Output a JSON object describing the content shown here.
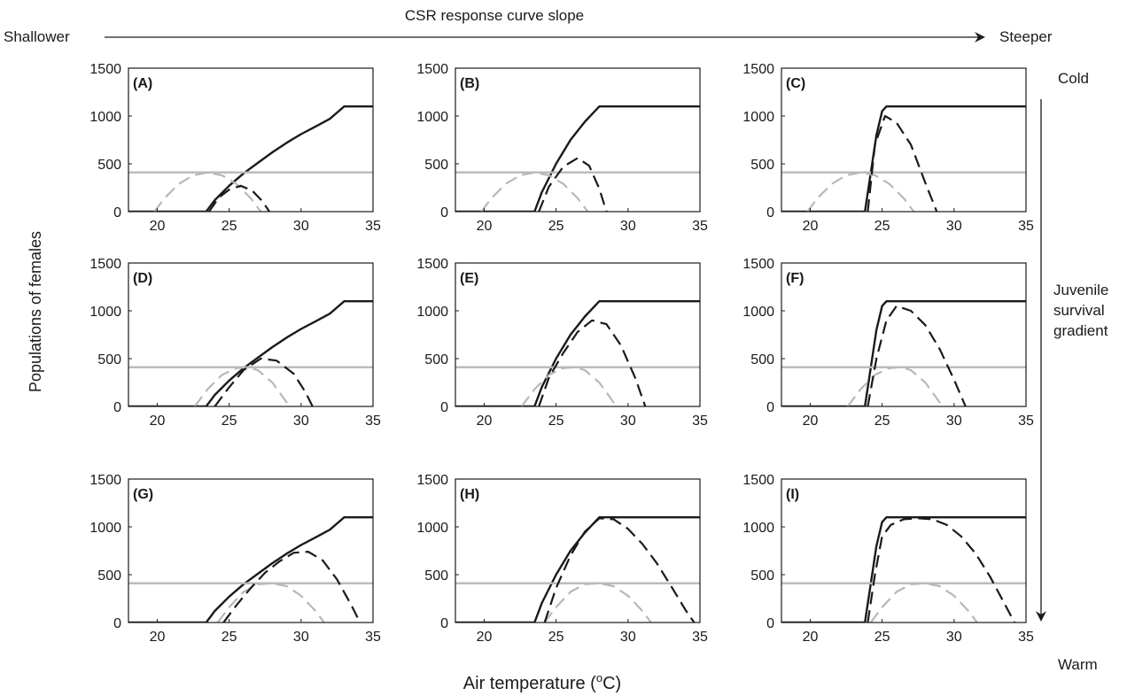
{
  "header": {
    "title": "CSR response curve slope",
    "left_label": "Shallower",
    "right_label": "Steeper"
  },
  "side": {
    "top_label": "Cold",
    "middle_label_lines": [
      "Juvenile",
      "survival",
      "gradient"
    ],
    "bottom_label": "Warm"
  },
  "axes": {
    "ylabel": "Populations of females",
    "xlabel_main": "Air  temperature (",
    "xlabel_sup": "o",
    "xlabel_end": "C)"
  },
  "colors": {
    "axis": "#1a1a1a",
    "csr_line": "#1a1a1a",
    "population_dashed_black": "#1a1a1a",
    "constant_gray": "#b8b8b8",
    "dashed_gray": "#b8b8b8"
  },
  "chart_data": [
    {
      "type": "line",
      "panel_label": "(A)",
      "xlim": [
        18,
        35
      ],
      "ylim": [
        0,
        1500
      ],
      "xticks": [
        20,
        25,
        30,
        35
      ],
      "yticks": [
        0,
        500,
        1000,
        1500
      ],
      "series": [
        {
          "style": "solid-black",
          "x": [
            18,
            23.4,
            24,
            25,
            26,
            27,
            28,
            29,
            30,
            31,
            32,
            33,
            35
          ],
          "y": [
            0,
            0,
            120,
            270,
            400,
            510,
            620,
            720,
            810,
            890,
            970,
            1100,
            1100
          ]
        },
        {
          "style": "solid-gray",
          "x": [
            18,
            35
          ],
          "y": [
            410,
            410
          ]
        },
        {
          "style": "dashed-gray",
          "x": [
            19.8,
            20.5,
            21.5,
            22.5,
            23.5,
            24.5,
            25.5,
            26.5,
            27.2
          ],
          "y": [
            0,
            140,
            290,
            380,
            410,
            380,
            290,
            140,
            0
          ]
        },
        {
          "style": "dashed-black",
          "x": [
            23.6,
            24.3,
            25,
            25.8,
            26.6,
            27.3,
            27.8
          ],
          "y": [
            0,
            150,
            230,
            270,
            220,
            110,
            0
          ]
        }
      ]
    },
    {
      "type": "line",
      "panel_label": "(B)",
      "xlim": [
        18,
        35
      ],
      "ylim": [
        0,
        1500
      ],
      "xticks": [
        20,
        25,
        30,
        35
      ],
      "yticks": [
        0,
        500,
        1000,
        1500
      ],
      "series": [
        {
          "style": "solid-black",
          "x": [
            18,
            23.5,
            24,
            25,
            26,
            27,
            28,
            35
          ],
          "y": [
            0,
            0,
            200,
            500,
            750,
            940,
            1100,
            1100
          ]
        },
        {
          "style": "solid-gray",
          "x": [
            18,
            35
          ],
          "y": [
            410,
            410
          ]
        },
        {
          "style": "dashed-gray",
          "x": [
            19.8,
            20.5,
            21.5,
            22.5,
            23.5,
            24.5,
            25.5,
            26.5,
            27.2
          ],
          "y": [
            0,
            140,
            290,
            380,
            410,
            380,
            290,
            140,
            0
          ]
        },
        {
          "style": "dashed-black",
          "x": [
            23.8,
            24.5,
            25.5,
            26.5,
            27.3,
            28.0,
            28.5
          ],
          "y": [
            0,
            260,
            470,
            560,
            480,
            240,
            0
          ]
        }
      ]
    },
    {
      "type": "line",
      "panel_label": "(C)",
      "xlim": [
        18,
        35
      ],
      "ylim": [
        0,
        1500
      ],
      "xticks": [
        20,
        25,
        30,
        35
      ],
      "yticks": [
        0,
        500,
        1000,
        1500
      ],
      "series": [
        {
          "style": "solid-black",
          "x": [
            18,
            23.8,
            24.2,
            24.6,
            25,
            25.3,
            35
          ],
          "y": [
            0,
            0,
            400,
            800,
            1050,
            1100,
            1100
          ]
        },
        {
          "style": "solid-gray",
          "x": [
            18,
            35
          ],
          "y": [
            410,
            410
          ]
        },
        {
          "style": "dashed-gray",
          "x": [
            19.8,
            20.5,
            21.5,
            22.5,
            23.5,
            24.5,
            25.5,
            26.5,
            27.2
          ],
          "y": [
            0,
            140,
            290,
            380,
            410,
            380,
            290,
            140,
            0
          ]
        },
        {
          "style": "dashed-black",
          "x": [
            24,
            24.5,
            25.2,
            26,
            27,
            28,
            28.8
          ],
          "y": [
            0,
            700,
            1000,
            930,
            700,
            300,
            0
          ]
        }
      ]
    },
    {
      "type": "line",
      "panel_label": "(D)",
      "xlim": [
        18,
        35
      ],
      "ylim": [
        0,
        1500
      ],
      "xticks": [
        20,
        25,
        30,
        35
      ],
      "yticks": [
        0,
        500,
        1000,
        1500
      ],
      "series": [
        {
          "style": "solid-black",
          "x": [
            18,
            23.4,
            24,
            25,
            26,
            27,
            28,
            29,
            30,
            31,
            32,
            33,
            35
          ],
          "y": [
            0,
            0,
            120,
            270,
            400,
            510,
            620,
            720,
            810,
            890,
            970,
            1100,
            1100
          ]
        },
        {
          "style": "solid-gray",
          "x": [
            18,
            35
          ],
          "y": [
            410,
            410
          ]
        },
        {
          "style": "dashed-gray",
          "x": [
            22.6,
            23.5,
            24.5,
            25.5,
            26.3,
            27,
            28,
            29.2
          ],
          "y": [
            0,
            180,
            330,
            400,
            410,
            380,
            250,
            0
          ]
        },
        {
          "style": "dashed-black",
          "x": [
            24,
            25,
            26,
            27.2,
            28.3,
            29.5,
            30.3,
            30.8
          ],
          "y": [
            0,
            200,
            380,
            500,
            480,
            340,
            150,
            0
          ]
        }
      ]
    },
    {
      "type": "line",
      "panel_label": "(E)",
      "xlim": [
        18,
        35
      ],
      "ylim": [
        0,
        1500
      ],
      "xticks": [
        20,
        25,
        30,
        35
      ],
      "yticks": [
        0,
        500,
        1000,
        1500
      ],
      "series": [
        {
          "style": "solid-black",
          "x": [
            18,
            23.5,
            24,
            25,
            26,
            27,
            28,
            35
          ],
          "y": [
            0,
            0,
            200,
            500,
            750,
            940,
            1100,
            1100
          ]
        },
        {
          "style": "solid-gray",
          "x": [
            18,
            35
          ],
          "y": [
            410,
            410
          ]
        },
        {
          "style": "dashed-gray",
          "x": [
            22.6,
            23.5,
            24.5,
            25.5,
            26.3,
            27,
            28,
            29.2
          ],
          "y": [
            0,
            180,
            330,
            400,
            410,
            380,
            250,
            0
          ]
        },
        {
          "style": "dashed-black",
          "x": [
            23.8,
            24.5,
            25.5,
            26.5,
            27.5,
            28.5,
            29.5,
            30.5,
            31.2
          ],
          "y": [
            0,
            300,
            560,
            780,
            900,
            860,
            640,
            300,
            0
          ]
        }
      ]
    },
    {
      "type": "line",
      "panel_label": "(F)",
      "xlim": [
        18,
        35
      ],
      "ylim": [
        0,
        1500
      ],
      "xticks": [
        20,
        25,
        30,
        35
      ],
      "yticks": [
        0,
        500,
        1000,
        1500
      ],
      "series": [
        {
          "style": "solid-black",
          "x": [
            18,
            23.8,
            24.2,
            24.6,
            25,
            25.3,
            35
          ],
          "y": [
            0,
            0,
            400,
            800,
            1050,
            1100,
            1100
          ]
        },
        {
          "style": "solid-gray",
          "x": [
            18,
            35
          ],
          "y": [
            410,
            410
          ]
        },
        {
          "style": "dashed-gray",
          "x": [
            22.6,
            23.5,
            24.5,
            25.5,
            26.3,
            27,
            28,
            29.2
          ],
          "y": [
            0,
            180,
            330,
            400,
            410,
            380,
            250,
            0
          ]
        },
        {
          "style": "dashed-black",
          "x": [
            24,
            24.6,
            25.3,
            26,
            27,
            28,
            29,
            30,
            30.8
          ],
          "y": [
            0,
            500,
            900,
            1050,
            1000,
            850,
            600,
            280,
            0
          ]
        }
      ]
    },
    {
      "type": "line",
      "panel_label": "(G)",
      "xlim": [
        18,
        35
      ],
      "ylim": [
        0,
        1500
      ],
      "xticks": [
        20,
        25,
        30,
        35
      ],
      "yticks": [
        0,
        500,
        1000,
        1500
      ],
      "series": [
        {
          "style": "solid-black",
          "x": [
            18,
            23.4,
            24,
            25,
            26,
            27,
            28,
            29,
            30,
            31,
            32,
            33,
            35
          ],
          "y": [
            0,
            0,
            120,
            270,
            400,
            510,
            620,
            720,
            810,
            890,
            970,
            1100,
            1100
          ]
        },
        {
          "style": "solid-gray",
          "x": [
            18,
            35
          ],
          "y": [
            410,
            410
          ]
        },
        {
          "style": "dashed-gray",
          "x": [
            24.2,
            25,
            26,
            27,
            28,
            29,
            30,
            31,
            31.6
          ],
          "y": [
            0,
            160,
            320,
            400,
            410,
            380,
            280,
            120,
            0
          ]
        },
        {
          "style": "dashed-black",
          "x": [
            24.6,
            25.5,
            26.5,
            27.5,
            28.5,
            29.5,
            30.5,
            31.5,
            32.5,
            33.5,
            34.1
          ],
          "y": [
            0,
            180,
            360,
            520,
            640,
            730,
            740,
            650,
            450,
            180,
            0
          ]
        }
      ]
    },
    {
      "type": "line",
      "panel_label": "(H)",
      "xlim": [
        18,
        35
      ],
      "ylim": [
        0,
        1500
      ],
      "xticks": [
        20,
        25,
        30,
        35
      ],
      "yticks": [
        0,
        500,
        1000,
        1500
      ],
      "series": [
        {
          "style": "solid-black",
          "x": [
            18,
            23.5,
            24,
            25,
            26,
            27,
            28,
            35
          ],
          "y": [
            0,
            0,
            200,
            500,
            750,
            940,
            1100,
            1100
          ]
        },
        {
          "style": "solid-gray",
          "x": [
            18,
            35
          ],
          "y": [
            410,
            410
          ]
        },
        {
          "style": "dashed-gray",
          "x": [
            24.2,
            25,
            26,
            27,
            28,
            29,
            30,
            31,
            31.6
          ],
          "y": [
            0,
            160,
            320,
            400,
            410,
            380,
            280,
            120,
            0
          ]
        },
        {
          "style": "dashed-black",
          "x": [
            24.2,
            25,
            26,
            27,
            28,
            29,
            30,
            31,
            32,
            33,
            34,
            34.6
          ],
          "y": [
            0,
            360,
            700,
            950,
            1090,
            1080,
            980,
            820,
            620,
            380,
            130,
            0
          ]
        }
      ]
    },
    {
      "type": "line",
      "panel_label": "(I)",
      "xlim": [
        18,
        35
      ],
      "ylim": [
        0,
        1500
      ],
      "xticks": [
        20,
        25,
        30,
        35
      ],
      "yticks": [
        0,
        500,
        1000,
        1500
      ],
      "series": [
        {
          "style": "solid-black",
          "x": [
            18,
            23.8,
            24.2,
            24.6,
            25,
            25.3,
            35
          ],
          "y": [
            0,
            0,
            400,
            800,
            1050,
            1100,
            1100
          ]
        },
        {
          "style": "solid-gray",
          "x": [
            18,
            35
          ],
          "y": [
            410,
            410
          ]
        },
        {
          "style": "dashed-gray",
          "x": [
            24.2,
            25,
            26,
            27,
            28,
            29,
            30,
            31,
            31.6
          ],
          "y": [
            0,
            160,
            320,
            400,
            410,
            380,
            280,
            120,
            0
          ]
        },
        {
          "style": "dashed-black",
          "x": [
            24,
            24.5,
            25,
            25.6,
            26.5,
            27.5,
            28.5,
            29.5,
            30.5,
            31.5,
            32.5,
            33.5,
            34.2
          ],
          "y": [
            0,
            500,
            900,
            1020,
            1080,
            1090,
            1080,
            1020,
            900,
            720,
            480,
            200,
            0
          ]
        }
      ]
    }
  ]
}
